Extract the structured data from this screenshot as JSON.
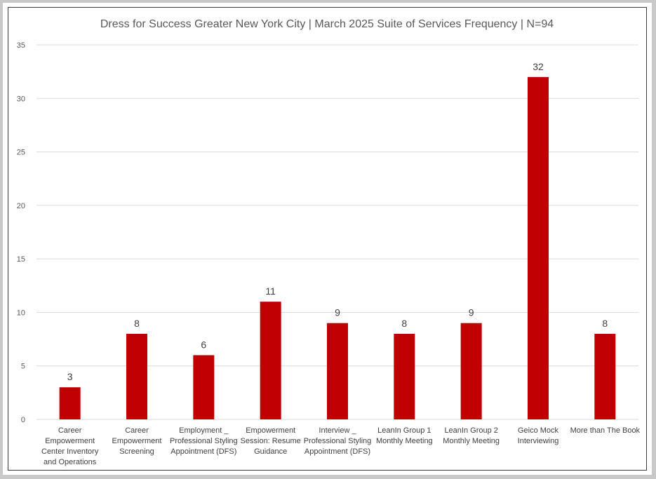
{
  "chart_data": {
    "type": "bar",
    "title": "Dress for Success Greater New York City | March 2025 Suite of Services Frequency | N=94",
    "categories": [
      "Career Empowerment Center Inventory and Operations",
      "Career Empowerment Screening",
      "Employment _ Professional Styling Appointment (DFS)",
      "Empowerment Session: Resume Guidance",
      "Interview _ Professional Styling Appointment (DFS)",
      "LeanIn Group 1 Monthly Meeting",
      "LeanIn Group 2 Monthly Meeting",
      "Geico Mock Interviewing",
      "More than The Book"
    ],
    "category_lines": [
      [
        "Career",
        "Empowerment",
        "Center Inventory",
        "and Operations"
      ],
      [
        "Career",
        "Empowerment",
        "Screening"
      ],
      [
        "Employment _",
        "Professional Styling",
        "Appointment (DFS)"
      ],
      [
        "Empowerment",
        "Session: Resume",
        "Guidance"
      ],
      [
        "Interview _",
        "Professional Styling",
        "Appointment (DFS)"
      ],
      [
        "LeanIn Group 1",
        "Monthly Meeting"
      ],
      [
        "LeanIn Group 2",
        "Monthly Meeting"
      ],
      [
        "Geico Mock",
        "Interviewing"
      ],
      [
        "More than The Book"
      ]
    ],
    "values": [
      3,
      8,
      6,
      11,
      9,
      8,
      9,
      32,
      8
    ],
    "xlabel": "",
    "ylabel": "",
    "ylim": [
      0,
      35
    ],
    "yticks": [
      0,
      5,
      10,
      15,
      20,
      25,
      30,
      35
    ],
    "grid": true,
    "legend": "none",
    "data_labels": true,
    "bar_color": "#c00000"
  }
}
